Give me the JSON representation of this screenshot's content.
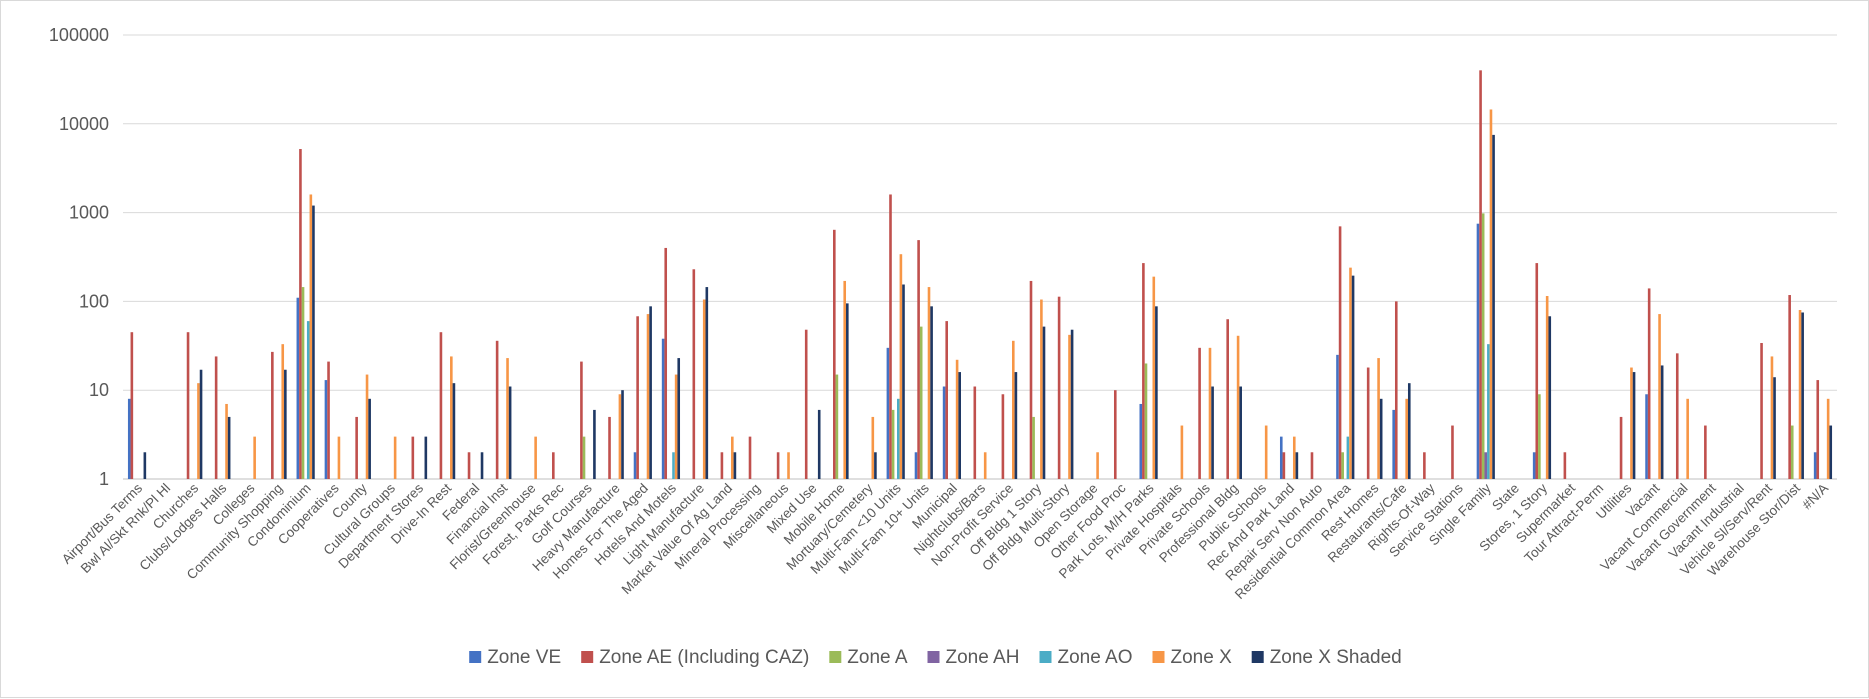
{
  "chart_data": {
    "type": "bar",
    "scale": "log",
    "ylim": [
      1,
      100000
    ],
    "yticks": [
      "1",
      "10",
      "100",
      "1000",
      "10000",
      "100000"
    ],
    "grid": true,
    "legend_position": "bottom",
    "categories": [
      "Airport/Bus Terms",
      "Bwl Al/Skt Rnk/Pl Hl",
      "Churches",
      "Clubs/Lodges Halls",
      "Colleges",
      "Community Shopping",
      "Condominium",
      "Cooperatives",
      "County",
      "Cultural Groups",
      "Department Stores",
      "Drive-In Rest",
      "Federal",
      "Financial Inst",
      "Florist/Greenhouse",
      "Forest, Parks  Rec",
      "Golf Courses",
      "Heavy Manufacture",
      "Homes For The Aged",
      "Hotels And Motels",
      "Light Manufacture",
      "Market Value Of Ag Land",
      "Mineral Processing",
      "Miscellaneous",
      "Mixed Use",
      "Mobile Home",
      "Mortuary/Cemetery",
      "Multi-Fam <10 Units",
      "Multi-Fam 10+ Units",
      "Municipal",
      "Nightclubs/Bars",
      "Non-Profit Service",
      "Off Bldg 1 Story",
      "Off Bldg Multi-Story",
      "Open Storage",
      "Other Food Proc",
      "Park Lots, M/H Parks",
      "Private Hospitals",
      "Private Schools",
      "Professional Bldg",
      "Public Schools",
      "Rec And Park Land",
      "Repair Serv Non Auto",
      "Residential Common Area",
      "Rest Homes",
      "Restaurants/Cafe",
      "Rights-Of-Way",
      "Service Stations",
      "Single Family",
      "State",
      "Stores, 1 Story",
      "Supermarket",
      "Tour Attract-Perm",
      "Utilities",
      "Vacant",
      "Vacant Commercial",
      "Vacant Government",
      "Vacant Industrial",
      "Vehicle Sl/Serv/Rent",
      "Warehouse Stor/Dist",
      "#N/A"
    ],
    "series": [
      {
        "name": "Zone VE",
        "color": "#4472C4",
        "values": [
          8,
          null,
          null,
          null,
          null,
          null,
          110,
          13,
          null,
          null,
          null,
          null,
          null,
          null,
          null,
          null,
          null,
          null,
          2,
          38,
          null,
          null,
          null,
          null,
          null,
          null,
          null,
          30,
          2,
          11,
          null,
          null,
          null,
          null,
          null,
          null,
          7,
          null,
          null,
          null,
          null,
          3,
          null,
          25,
          null,
          6,
          null,
          null,
          750,
          null,
          2,
          null,
          null,
          null,
          9,
          null,
          null,
          null,
          null,
          null,
          2
        ]
      },
      {
        "name": "Zone AE (Including CAZ)",
        "color": "#C0504D",
        "values": [
          45,
          null,
          45,
          24,
          null,
          27,
          5200,
          21,
          5,
          null,
          3,
          45,
          2,
          36,
          null,
          2,
          21,
          5,
          68,
          400,
          230,
          2,
          3,
          2,
          48,
          640,
          null,
          1600,
          490,
          60,
          11,
          9,
          170,
          113,
          null,
          10,
          270,
          null,
          30,
          63,
          null,
          2,
          2,
          700,
          18,
          100,
          2,
          4,
          40000,
          null,
          270,
          2,
          null,
          5,
          140,
          26,
          4,
          null,
          34,
          118,
          13
        ]
      },
      {
        "name": "Zone A",
        "color": "#9BBB59",
        "values": [
          null,
          null,
          null,
          null,
          null,
          null,
          145,
          null,
          null,
          null,
          null,
          null,
          null,
          null,
          null,
          null,
          3,
          null,
          null,
          null,
          null,
          null,
          null,
          null,
          null,
          15,
          null,
          6,
          52,
          null,
          null,
          null,
          5,
          null,
          null,
          null,
          20,
          null,
          null,
          null,
          null,
          null,
          null,
          2,
          null,
          null,
          null,
          null,
          980,
          null,
          9,
          null,
          null,
          null,
          null,
          null,
          null,
          null,
          null,
          4,
          null
        ]
      },
      {
        "name": "Zone AH",
        "color": "#8064A2",
        "values": [
          null,
          null,
          null,
          null,
          null,
          null,
          null,
          null,
          null,
          null,
          null,
          null,
          null,
          null,
          null,
          null,
          null,
          null,
          null,
          null,
          null,
          null,
          null,
          null,
          null,
          null,
          null,
          null,
          null,
          null,
          null,
          null,
          null,
          null,
          null,
          null,
          null,
          null,
          null,
          null,
          null,
          null,
          null,
          null,
          null,
          null,
          null,
          null,
          2,
          null,
          null,
          null,
          null,
          null,
          null,
          null,
          null,
          null,
          null,
          null,
          null
        ]
      },
      {
        "name": "Zone AO",
        "color": "#4BACC6",
        "values": [
          null,
          null,
          null,
          null,
          null,
          null,
          60,
          null,
          null,
          null,
          null,
          null,
          null,
          null,
          null,
          null,
          null,
          null,
          null,
          2,
          null,
          null,
          null,
          null,
          null,
          null,
          null,
          8,
          null,
          null,
          null,
          null,
          null,
          null,
          null,
          null,
          null,
          null,
          null,
          null,
          null,
          null,
          null,
          3,
          null,
          null,
          null,
          null,
          33,
          null,
          null,
          null,
          null,
          null,
          null,
          null,
          null,
          null,
          null,
          null,
          null
        ]
      },
      {
        "name": "Zone X",
        "color": "#F79646",
        "values": [
          null,
          null,
          12,
          7,
          3,
          33,
          1600,
          3,
          15,
          3,
          null,
          24,
          null,
          23,
          3,
          null,
          null,
          9,
          72,
          15,
          105,
          3,
          null,
          2,
          null,
          170,
          5,
          340,
          145,
          22,
          2,
          36,
          105,
          42,
          2,
          null,
          190,
          4,
          30,
          41,
          4,
          3,
          null,
          240,
          23,
          8,
          null,
          null,
          14500,
          null,
          115,
          null,
          null,
          18,
          72,
          8,
          null,
          null,
          24,
          80,
          8
        ]
      },
      {
        "name": "Zone X Shaded",
        "color": "#1F3864",
        "values": [
          2,
          null,
          17,
          5,
          null,
          17,
          1200,
          null,
          8,
          null,
          3,
          12,
          2,
          11,
          null,
          null,
          6,
          10,
          88,
          23,
          145,
          2,
          null,
          null,
          6,
          95,
          2,
          155,
          88,
          16,
          null,
          16,
          52,
          48,
          null,
          null,
          88,
          null,
          11,
          11,
          null,
          2,
          null,
          195,
          8,
          12,
          null,
          null,
          7500,
          null,
          68,
          null,
          null,
          16,
          19,
          null,
          null,
          null,
          14,
          75,
          4
        ]
      }
    ]
  }
}
